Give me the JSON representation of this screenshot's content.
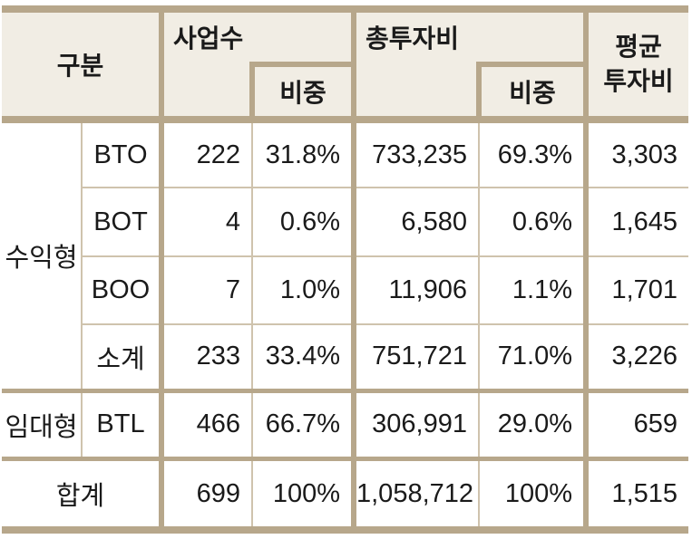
{
  "header": {
    "category": "구분",
    "projects": "사업수",
    "projects_share": "비중",
    "total_cost": "총투자비",
    "total_cost_share": "비중",
    "avg_cost_line1": "평균",
    "avg_cost_line2": "투자비"
  },
  "groups": {
    "profit": "수익형",
    "lease": "임대형",
    "total": "합계"
  },
  "rows": [
    {
      "type": "BTO",
      "count": "222",
      "count_share": "31.8%",
      "cost": "733,235",
      "cost_share": "69.3%",
      "avg": "3,303"
    },
    {
      "type": "BOT",
      "count": "4",
      "count_share": "0.6%",
      "cost": "6,580",
      "cost_share": "0.6%",
      "avg": "1,645"
    },
    {
      "type": "BOO",
      "count": "7",
      "count_share": "1.0%",
      "cost": "11,906",
      "cost_share": "1.1%",
      "avg": "1,701"
    },
    {
      "type": "소계",
      "count": "233",
      "count_share": "33.4%",
      "cost": "751,721",
      "cost_share": "71.0%",
      "avg": "3,226"
    },
    {
      "type": "BTL",
      "count": "466",
      "count_share": "66.7%",
      "cost": "306,991",
      "cost_share": "29.0%",
      "avg": "659"
    },
    {
      "type": "",
      "count": "699",
      "count_share": "100%",
      "cost": "1,058,712",
      "cost_share": "100%",
      "avg": "1,515"
    }
  ]
}
